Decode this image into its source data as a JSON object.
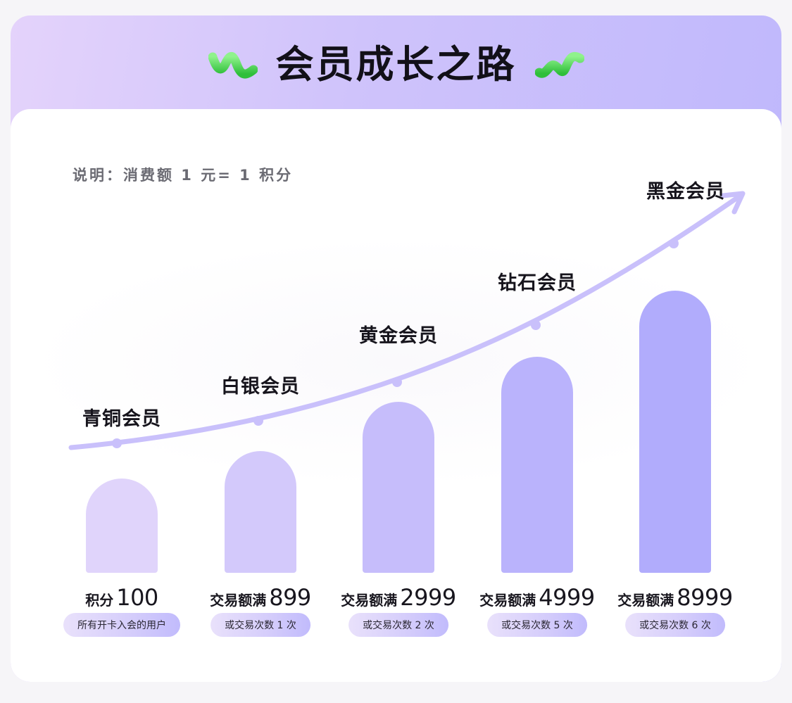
{
  "header": {
    "title": "会员成长之路"
  },
  "note": "说明：消费额 1 元= 1 积分",
  "levels": [
    {
      "name": "青铜会员",
      "req_text": "积分",
      "req_num": "100",
      "pill": "所有开卡入会的用户",
      "bar_color": "#e0d4fb"
    },
    {
      "name": "白银会员",
      "req_text": "交易额满",
      "req_num": "899",
      "pill": "或交易次数 1 次",
      "bar_color": "#d3c9fb"
    },
    {
      "name": "黄金会员",
      "req_text": "交易额满",
      "req_num": "2999",
      "pill": "或交易次数 2 次",
      "bar_color": "#c6bdfb"
    },
    {
      "name": "钻石会员",
      "req_text": "交易额满",
      "req_num": "4999",
      "pill": "或交易次数 5 次",
      "bar_color": "#bab3fc"
    },
    {
      "name": "黑金会员",
      "req_text": "交易额满",
      "req_num": "8999",
      "pill": "或交易次数 6 次",
      "bar_color": "#b1acfc"
    }
  ],
  "colors": {
    "curve": "#c9c0fb",
    "worm": "#3fd34a"
  }
}
